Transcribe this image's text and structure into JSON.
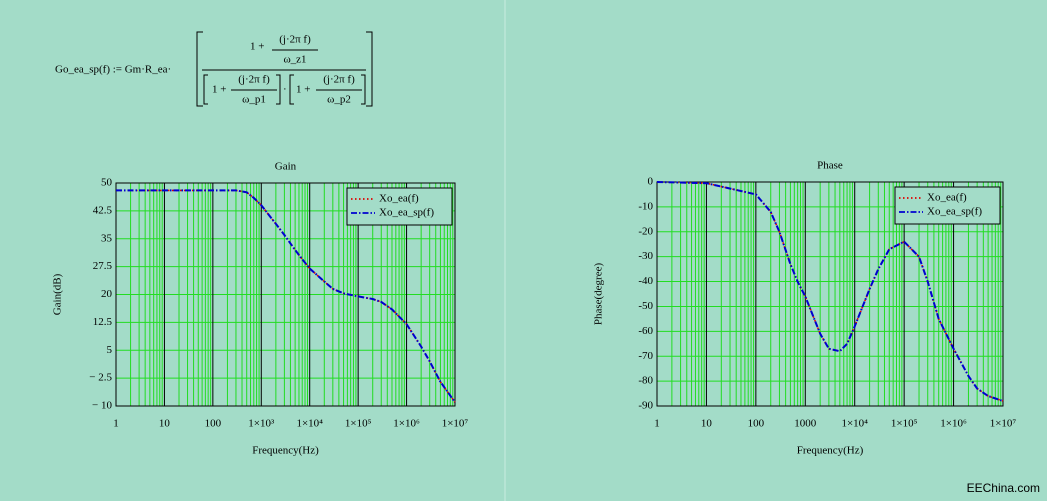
{
  "formula": {
    "lhs": "Go_ea_sp(f) := Gm·R_ea·",
    "num_one": "1 +",
    "num_top": "(j·2π f)",
    "num_bottom": "ω_z1",
    "d1_one": "1 +",
    "d1_top": "(j·2π f)",
    "d1_bottom": "ω_p1",
    "dot": "·",
    "d2_one": "1 +",
    "d2_top": "(j·2π f)",
    "d2_bottom": "ω_p2"
  },
  "watermark": "EEChina.com",
  "chart_data": [
    {
      "type": "line",
      "title": "Gain",
      "x_label": "Frequency(Hz)",
      "y_label": "Gain(dB)",
      "x_log": true,
      "grid": true,
      "legend": "upper right",
      "x": [
        1,
        10,
        100,
        200,
        300,
        500,
        700,
        1000,
        2000,
        3000,
        5000,
        7000,
        10000,
        20000,
        30000,
        50000,
        100000,
        200000,
        300000,
        500000,
        1000000,
        2000000,
        3000000,
        5000000,
        10000000
      ],
      "series": [
        {
          "name": "Xo_ea(f)",
          "color": "#e00000",
          "linestyle": "dotted",
          "values": [
            48,
            48,
            48,
            48,
            48,
            47.5,
            46,
            44,
            39,
            36,
            32,
            29.5,
            27,
            23.5,
            21.5,
            20.3,
            19.5,
            18.8,
            18,
            16,
            12,
            6,
            2,
            -3.5,
            -9
          ]
        },
        {
          "name": "Xo_ea_sp(f)",
          "color": "#0000d0",
          "linestyle": "dashdot",
          "values": [
            48,
            48,
            48,
            48,
            48,
            47.5,
            46,
            44,
            39,
            36,
            32,
            29.5,
            27,
            23.5,
            21.5,
            20.3,
            19.5,
            18.8,
            18,
            16,
            12,
            6,
            2,
            -3.5,
            -9
          ]
        }
      ],
      "xlim": [
        1,
        10000000
      ],
      "xticks": [
        1,
        10,
        100,
        {
          "value": 1000,
          "label": "1×10³"
        },
        {
          "value": 10000,
          "label": "1×10⁴"
        },
        {
          "value": 100000,
          "label": "1×10⁵"
        },
        {
          "value": 1000000,
          "label": "1×10⁶"
        },
        {
          "value": 10000000,
          "label": "1×10⁷"
        }
      ],
      "ylim": [
        -10,
        50
      ],
      "yticks": [
        {
          "value": -10,
          "label": "− 10"
        },
        {
          "value": -2.5,
          "label": "− 2.5"
        },
        5,
        12.5,
        20,
        27.5,
        35,
        42.5,
        50
      ]
    },
    {
      "type": "line",
      "title": "Phase",
      "x_label": "Frequency(Hz)",
      "y_label": "Phase(degree)",
      "x_log": true,
      "grid": true,
      "legend": "upper right",
      "x": [
        1,
        10,
        100,
        200,
        300,
        500,
        700,
        1000,
        2000,
        3000,
        5000,
        7000,
        10000,
        20000,
        30000,
        50000,
        100000,
        200000,
        300000,
        500000,
        1000000,
        2000000,
        3000000,
        5000000,
        10000000
      ],
      "series": [
        {
          "name": "Xo_ea(f)",
          "color": "#e00000",
          "linestyle": "dotted",
          "values": [
            0,
            -0.5,
            -5,
            -12,
            -20,
            -33,
            -40,
            -46,
            -61,
            -67,
            -68,
            -65,
            -58,
            -43,
            -35,
            -27,
            -24,
            -30,
            -40,
            -55,
            -67,
            -78,
            -83,
            -86,
            -88
          ]
        },
        {
          "name": "Xo_ea_sp(f)",
          "color": "#0000d0",
          "linestyle": "dashdot",
          "values": [
            0,
            -0.5,
            -5,
            -12,
            -20,
            -33,
            -40,
            -46,
            -61,
            -67,
            -68,
            -65,
            -58,
            -43,
            -35,
            -27,
            -24,
            -30,
            -40,
            -55,
            -67,
            -78,
            -83,
            -86,
            -88
          ]
        }
      ],
      "xlim": [
        1,
        10000000
      ],
      "xticks": [
        1,
        10,
        100,
        1000,
        {
          "value": 10000,
          "label": "1×10⁴"
        },
        {
          "value": 100000,
          "label": "1×10⁵"
        },
        {
          "value": 1000000,
          "label": "1×10⁶"
        },
        {
          "value": 10000000,
          "label": "1×10⁷"
        }
      ],
      "ylim": [
        -90,
        0
      ],
      "yticks": [
        -90,
        -80,
        -70,
        -60,
        -50,
        -40,
        -30,
        -20,
        -10,
        0
      ]
    }
  ]
}
